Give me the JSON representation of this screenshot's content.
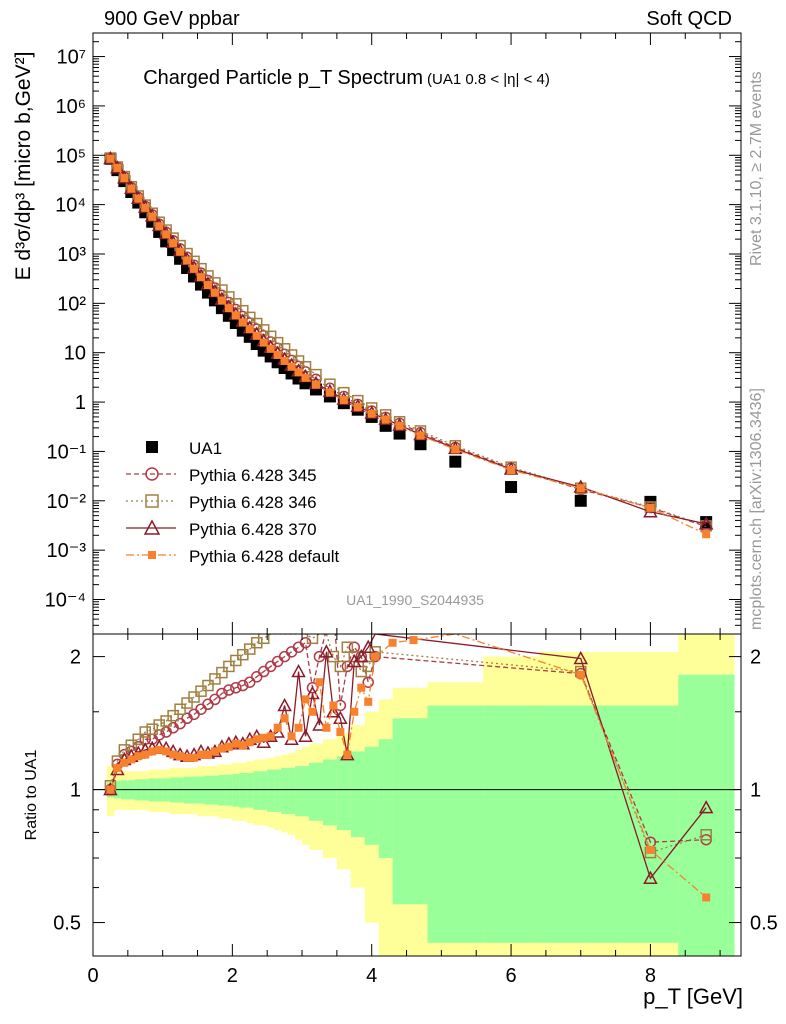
{
  "header": {
    "left": "900 GeV ppbar",
    "right": "Soft QCD"
  },
  "side_labels": {
    "rivet": "Rivet 3.1.10, ≥ 2.7M events",
    "mcplots": "mcplots.cern.ch [arXiv:1306.3436]"
  },
  "chart_data": [
    {
      "type": "scatter",
      "title": "Charged Particle p_T Spectrum",
      "title_note": "(UA1 0.8 < |η| < 4)",
      "watermark": "UA1_1990_S2044935",
      "xlabel": "p_T [GeV]",
      "ylabel": "E d³σ/dp³ [micro b,GeV²]",
      "yscale": "log",
      "xlim": [
        0,
        9.3
      ],
      "ylim": [
        2e-05,
        30000000.0
      ],
      "y_ticks": [
        "10⁻⁴",
        "10⁻³",
        "10⁻²",
        "10⁻¹",
        "1",
        "10",
        "10²",
        "10³",
        "10⁴",
        "10⁵",
        "10⁶",
        "10⁷"
      ],
      "legend": [
        "UA1",
        "Pythia 6.428 345",
        "Pythia 6.428 346",
        "Pythia 6.428 370",
        "Pythia 6.428 default"
      ],
      "series": [
        {
          "name": "UA1",
          "color": "#000000",
          "marker": "square-filled",
          "x": [
            0.25,
            0.35,
            0.45,
            0.55,
            0.65,
            0.75,
            0.85,
            0.95,
            1.05,
            1.15,
            1.25,
            1.35,
            1.45,
            1.55,
            1.65,
            1.75,
            1.85,
            1.95,
            2.05,
            2.15,
            2.25,
            2.35,
            2.45,
            2.55,
            2.65,
            2.75,
            2.85,
            2.95,
            3.05,
            3.2,
            3.4,
            3.6,
            3.8,
            4.0,
            4.2,
            4.4,
            4.7,
            5.2,
            6.0,
            7.0,
            8.0,
            8.8
          ],
          "y": [
            85000,
            50000,
            30000,
            18000,
            11000,
            7000,
            4500,
            2800,
            1800,
            1200,
            800,
            520,
            350,
            240,
            165,
            115,
            80,
            56,
            40,
            28,
            21,
            15,
            11,
            8.4,
            6.4,
            4.9,
            3.8,
            3.0,
            2.4,
            1.8,
            1.3,
            0.95,
            0.7,
            0.5,
            0.33,
            0.23,
            0.14,
            0.062,
            0.019,
            0.01,
            0.0095,
            0.0037
          ]
        },
        {
          "name": "Pythia 6.428 345",
          "color": "#b03a48",
          "marker": "circle-open",
          "x": [
            0.25,
            0.35,
            0.45,
            0.55,
            0.65,
            0.75,
            0.85,
            0.95,
            1.05,
            1.15,
            1.25,
            1.35,
            1.45,
            1.55,
            1.65,
            1.75,
            1.85,
            1.95,
            2.05,
            2.15,
            2.25,
            2.35,
            2.45,
            2.55,
            2.65,
            2.75,
            2.85,
            2.95,
            3.05,
            3.2,
            3.4,
            3.6,
            3.8,
            4.0,
            4.2,
            4.4,
            4.7,
            5.2,
            6.0,
            7.0,
            8.0,
            8.8
          ],
          "y": [
            87000,
            57000,
            36000,
            22000,
            14000,
            9200,
            6200,
            4000,
            2750,
            1850,
            1270,
            860,
            590,
            410,
            290,
            205,
            145,
            104,
            75,
            54,
            40,
            30,
            22,
            16.5,
            12.3,
            9.3,
            7.0,
            5.3,
            4.1,
            2.9,
            1.9,
            1.3,
            0.9,
            0.66,
            0.49,
            0.37,
            0.24,
            0.12,
            0.046,
            0.017,
            0.0073,
            0.003
          ]
        },
        {
          "name": "Pythia 6.428 346",
          "color": "#a08040",
          "marker": "square-open",
          "x": [
            0.25,
            0.35,
            0.45,
            0.55,
            0.65,
            0.75,
            0.85,
            0.95,
            1.05,
            1.15,
            1.25,
            1.35,
            1.45,
            1.55,
            1.65,
            1.75,
            1.85,
            1.95,
            2.05,
            2.15,
            2.25,
            2.35,
            2.45,
            2.55,
            2.65,
            2.75,
            2.85,
            2.95,
            3.05,
            3.2,
            3.4,
            3.6,
            3.8,
            4.0,
            4.2,
            4.4,
            4.7,
            5.2,
            6.0,
            7.0,
            8.0,
            8.8
          ],
          "y": [
            88000,
            58000,
            37000,
            23000,
            15000,
            9800,
            6700,
            4400,
            3050,
            2100,
            1480,
            1020,
            710,
            505,
            360,
            260,
            186,
            135,
            98,
            71,
            52,
            39,
            29,
            21.5,
            16,
            12,
            9.0,
            6.8,
            5.2,
            3.6,
            2.3,
            1.55,
            1.07,
            0.76,
            0.55,
            0.4,
            0.26,
            0.13,
            0.048,
            0.018,
            0.0075,
            0.0031
          ]
        },
        {
          "name": "Pythia 6.428 370",
          "color": "#8b1a2b",
          "marker": "triangle-open",
          "x": [
            0.25,
            0.35,
            0.45,
            0.55,
            0.65,
            0.75,
            0.85,
            0.95,
            1.05,
            1.15,
            1.25,
            1.35,
            1.45,
            1.55,
            1.65,
            1.75,
            1.85,
            1.95,
            2.05,
            2.15,
            2.25,
            2.35,
            2.45,
            2.55,
            2.65,
            2.75,
            2.85,
            2.95,
            3.05,
            3.2,
            3.4,
            3.6,
            3.8,
            4.0,
            4.2,
            4.4,
            4.7,
            5.2,
            6.0,
            7.0,
            8.0,
            8.8
          ],
          "y": [
            86000,
            56000,
            35000,
            21500,
            13500,
            8900,
            5900,
            3800,
            2600,
            1730,
            1170,
            780,
            530,
            360,
            250,
            175,
            122,
            86,
            61,
            44,
            32,
            24,
            17.5,
            13,
            9.8,
            7.4,
            5.6,
            4.3,
            3.3,
            2.4,
            1.65,
            1.15,
            0.82,
            0.6,
            0.45,
            0.34,
            0.22,
            0.115,
            0.044,
            0.019,
            0.006,
            0.0034
          ]
        },
        {
          "name": "Pythia 6.428 default",
          "color": "#f7812d",
          "marker": "square-filled-small",
          "x": [
            0.25,
            0.35,
            0.45,
            0.55,
            0.65,
            0.75,
            0.85,
            0.95,
            1.05,
            1.15,
            1.25,
            1.35,
            1.45,
            1.55,
            1.65,
            1.75,
            1.85,
            1.95,
            2.05,
            2.15,
            2.25,
            2.35,
            2.45,
            2.55,
            2.65,
            2.75,
            2.85,
            2.95,
            3.05,
            3.2,
            3.4,
            3.6,
            3.8,
            4.0,
            4.2,
            4.4,
            4.7,
            5.2,
            6.0,
            7.0,
            8.0,
            8.8
          ],
          "y": [
            85500,
            55500,
            34500,
            21000,
            13200,
            8600,
            5700,
            3650,
            2500,
            1650,
            1110,
            740,
            500,
            340,
            235,
            164,
            114,
            80,
            57,
            41,
            30,
            22,
            16,
            12,
            9.0,
            6.8,
            5.2,
            4.0,
            3.1,
            2.25,
            1.56,
            1.1,
            0.79,
            0.58,
            0.44,
            0.33,
            0.21,
            0.11,
            0.042,
            0.018,
            0.0072,
            0.0021
          ]
        }
      ]
    },
    {
      "type": "scatter",
      "ylabel": "Ratio to UA1",
      "xlabel": "p_T [GeV]",
      "xlim": [
        0,
        9.3
      ],
      "ylim": [
        0.42,
        2.25
      ],
      "yscale": "log",
      "x_ticks": [
        "0",
        "2",
        "4",
        "6",
        "8"
      ],
      "y_ticks_left": [
        "0.5",
        "1",
        "2"
      ],
      "y_ticks_right": [
        "0.5",
        "1",
        "2"
      ],
      "reference_line": 1,
      "uncertainty_bands": {
        "edges": [
          0.2,
          0.3,
          0.4,
          0.5,
          0.6,
          0.7,
          0.8,
          0.9,
          1.0,
          1.1,
          1.2,
          1.3,
          1.4,
          1.5,
          1.6,
          1.7,
          1.8,
          1.9,
          2.0,
          2.1,
          2.2,
          2.3,
          2.4,
          2.5,
          2.6,
          2.7,
          2.8,
          2.9,
          3.0,
          3.1,
          3.3,
          3.5,
          3.7,
          3.9,
          4.1,
          4.3,
          4.8,
          5.6,
          6.4,
          7.6,
          8.4,
          9.2
        ],
        "inner_color": "#99ff99",
        "outer_color": "#ffff99",
        "inner_half_width": [
          0.04,
          0.045,
          0.05,
          0.05,
          0.055,
          0.055,
          0.06,
          0.06,
          0.06,
          0.065,
          0.065,
          0.07,
          0.07,
          0.07,
          0.075,
          0.075,
          0.08,
          0.08,
          0.085,
          0.09,
          0.09,
          0.1,
          0.1,
          0.11,
          0.11,
          0.12,
          0.12,
          0.13,
          0.13,
          0.15,
          0.17,
          0.19,
          0.22,
          0.25,
          0.3,
          0.45,
          0.55,
          0.55,
          0.55,
          0.55,
          0.82
        ],
        "outer_half_width": [
          0.13,
          0.1,
          0.1,
          0.1,
          0.1,
          0.1,
          0.11,
          0.11,
          0.11,
          0.12,
          0.12,
          0.12,
          0.12,
          0.13,
          0.13,
          0.13,
          0.14,
          0.14,
          0.15,
          0.15,
          0.16,
          0.17,
          0.17,
          0.18,
          0.19,
          0.2,
          0.21,
          0.23,
          0.25,
          0.27,
          0.3,
          0.34,
          0.4,
          0.5,
          0.6,
          0.7,
          0.75,
          1.0,
          1.05,
          1.05,
          1.3
        ]
      },
      "series": [
        {
          "name": "Pythia 6.428 345",
          "color": "#b03a48",
          "marker": "circle-open",
          "x": [
            0.25,
            0.35,
            0.45,
            0.55,
            0.65,
            0.75,
            0.85,
            0.95,
            1.05,
            1.15,
            1.25,
            1.35,
            1.45,
            1.55,
            1.65,
            1.75,
            1.85,
            1.95,
            2.05,
            2.15,
            2.25,
            2.35,
            2.45,
            2.55,
            2.65,
            2.75,
            2.85,
            2.95,
            3.05,
            3.15,
            3.25,
            3.35,
            3.45,
            3.55,
            3.65,
            3.75,
            3.85,
            3.95,
            4.05,
            7.0,
            8.0,
            8.8
          ],
          "y": [
            1.0,
            1.14,
            1.2,
            1.22,
            1.25,
            1.3,
            1.3,
            1.33,
            1.35,
            1.38,
            1.41,
            1.45,
            1.48,
            1.52,
            1.56,
            1.6,
            1.65,
            1.68,
            1.7,
            1.72,
            1.75,
            1.8,
            1.85,
            1.9,
            1.95,
            2.0,
            2.05,
            2.1,
            2.15,
            1.7,
            2.0,
            2.3,
            2.6,
            1.55,
            1.9,
            2.1,
            2.0,
            1.75,
            2.0,
            1.83,
            0.76,
            0.77
          ]
        },
        {
          "name": "Pythia 6.428 346",
          "color": "#a08040",
          "marker": "square-open",
          "x": [
            0.25,
            0.35,
            0.45,
            0.55,
            0.65,
            0.75,
            0.85,
            0.95,
            1.05,
            1.15,
            1.25,
            1.35,
            1.45,
            1.55,
            1.65,
            1.75,
            1.85,
            1.95,
            2.05,
            2.15,
            2.25,
            2.35,
            2.45,
            2.55,
            2.65,
            2.75,
            2.85,
            2.95,
            3.05,
            3.15,
            3.25,
            3.35,
            3.45,
            3.55,
            3.65,
            3.75,
            3.85,
            3.95,
            4.05,
            7.0,
            8.0,
            8.8
          ],
          "y": [
            1.02,
            1.16,
            1.23,
            1.26,
            1.3,
            1.35,
            1.37,
            1.4,
            1.43,
            1.47,
            1.52,
            1.57,
            1.62,
            1.67,
            1.72,
            1.78,
            1.84,
            1.9,
            1.96,
            2.02,
            2.08,
            2.15,
            2.2,
            2.25,
            2.25,
            2.25,
            2.25,
            2.25,
            2.25,
            2.2,
            2.25,
            2.25,
            2.0,
            1.9,
            2.1,
            2.0,
            1.85,
            1.9,
            2.05,
            1.85,
            0.72,
            0.79
          ]
        },
        {
          "name": "Pythia 6.428 370",
          "color": "#8b1a2b",
          "marker": "triangle-open",
          "x": [
            0.25,
            0.35,
            0.45,
            0.55,
            0.65,
            0.75,
            0.85,
            0.95,
            1.05,
            1.15,
            1.25,
            1.35,
            1.45,
            1.55,
            1.65,
            1.75,
            1.85,
            1.95,
            2.05,
            2.15,
            2.25,
            2.35,
            2.45,
            2.55,
            2.65,
            2.75,
            2.85,
            2.95,
            3.05,
            3.15,
            3.25,
            3.35,
            3.45,
            3.55,
            3.65,
            3.75,
            3.85,
            3.95,
            4.05,
            7.0,
            8.0,
            8.8
          ],
          "y": [
            1.0,
            1.11,
            1.17,
            1.19,
            1.21,
            1.23,
            1.24,
            1.25,
            1.24,
            1.22,
            1.2,
            1.19,
            1.2,
            1.22,
            1.21,
            1.22,
            1.25,
            1.27,
            1.28,
            1.27,
            1.3,
            1.32,
            1.28,
            1.32,
            1.35,
            1.55,
            1.3,
            1.85,
            1.32,
            1.65,
            1.4,
            2.05,
            1.5,
            1.45,
            1.2,
            1.95,
            2.0,
            2.1,
            2.25,
            1.98,
            0.63,
            0.91
          ]
        },
        {
          "name": "Pythia 6.428 default",
          "color": "#f7812d",
          "marker": "square-filled-small",
          "x": [
            0.25,
            0.35,
            0.45,
            0.55,
            0.65,
            0.75,
            0.85,
            0.95,
            1.05,
            1.15,
            1.25,
            1.35,
            1.45,
            1.55,
            1.65,
            1.75,
            1.85,
            1.95,
            2.05,
            2.15,
            2.25,
            2.35,
            2.45,
            2.55,
            2.65,
            2.75,
            2.85,
            2.95,
            3.05,
            3.15,
            3.25,
            3.35,
            3.45,
            3.55,
            3.65,
            3.75,
            3.85,
            3.95,
            4.05,
            4.3,
            4.6,
            5.2,
            7.0,
            8.0,
            8.8
          ],
          "y": [
            1.0,
            1.12,
            1.15,
            1.17,
            1.19,
            1.2,
            1.22,
            1.23,
            1.22,
            1.2,
            1.19,
            1.18,
            1.18,
            1.2,
            1.2,
            1.22,
            1.24,
            1.25,
            1.27,
            1.26,
            1.28,
            1.3,
            1.31,
            1.32,
            1.38,
            1.45,
            1.32,
            1.38,
            1.6,
            1.5,
            1.75,
            1.38,
            1.55,
            1.35,
            1.2,
            1.5,
            1.7,
            1.58,
            2.0,
            2.15,
            2.18,
            2.25,
            1.82,
            0.73,
            0.57
          ]
        }
      ]
    }
  ]
}
